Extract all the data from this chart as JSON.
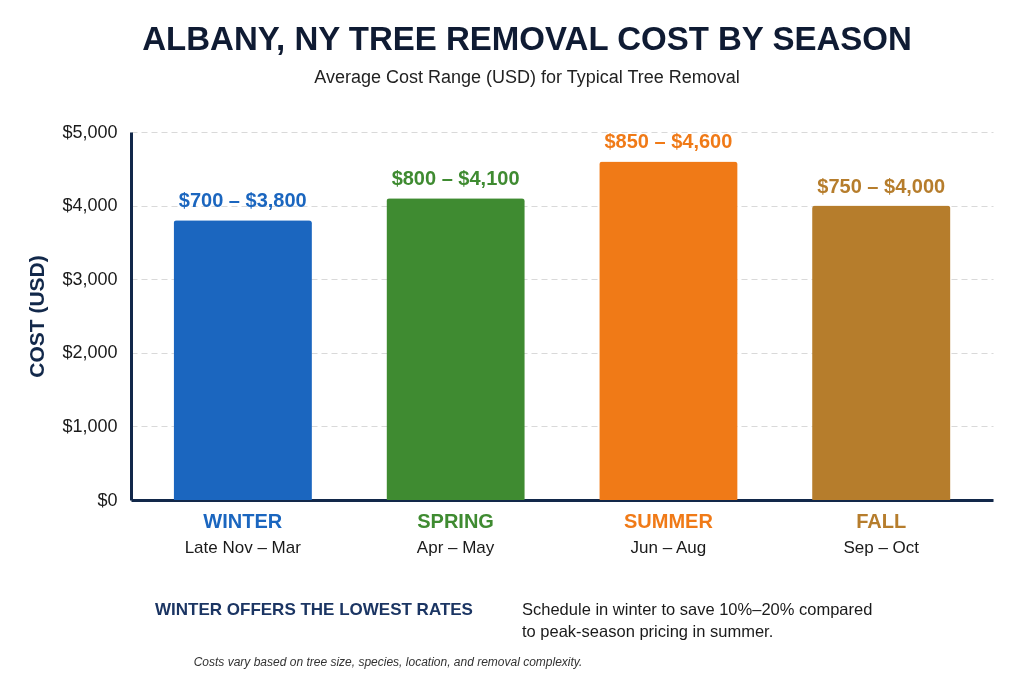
{
  "chart_data": {
    "type": "bar",
    "title": "ALBANY, NY TREE REMOVAL COST BY SEASON",
    "subtitle": "Average Cost Range (USD) for Typical Tree Removal",
    "ylabel": "COST (USD)",
    "categories": [
      "WINTER\nLate Nov – Mar",
      "SPRING\nApr – May",
      "SUMMER\nJun – Aug",
      "FALL\nSep – Oct"
    ],
    "values": [
      3800,
      4100,
      4600,
      4000
    ],
    "colors": [
      "#1b66bf",
      "#3f8b31",
      "#f07a17",
      "#b67d2c"
    ],
    "ylim": [
      0,
      5000
    ],
    "yticks": [
      {
        "value": 0,
        "label": "$0"
      },
      {
        "value": 1000,
        "label": "$1,000"
      },
      {
        "value": 2000,
        "label": "$2,000"
      },
      {
        "value": 3000,
        "label": "$3,000"
      },
      {
        "value": 4000,
        "label": "$4,000"
      },
      {
        "value": 5000,
        "label": "$5,000"
      }
    ],
    "grid": "y",
    "annotations": [
      {
        "text": "$700 – $3,800",
        "x": "WINTER\nLate Nov – Mar",
        "y": 3800
      },
      {
        "text": "$800 – $4,100",
        "x": "SPRING\nApr – May",
        "y": 4100
      },
      {
        "text": "$850 – $4,600",
        "x": "SUMMER\nJun – Aug",
        "y": 4600
      },
      {
        "text": "$750 – $4,000",
        "x": "FALL\nSep – Oct",
        "y": 4000
      },
      "WINTER OFFERS THE LOWEST RATES",
      "Schedule in winter to save 10%–20% compared to peak-season pricing in summer.",
      "Costs vary based on tree size, species, location, and removal complexity."
    ]
  }
}
